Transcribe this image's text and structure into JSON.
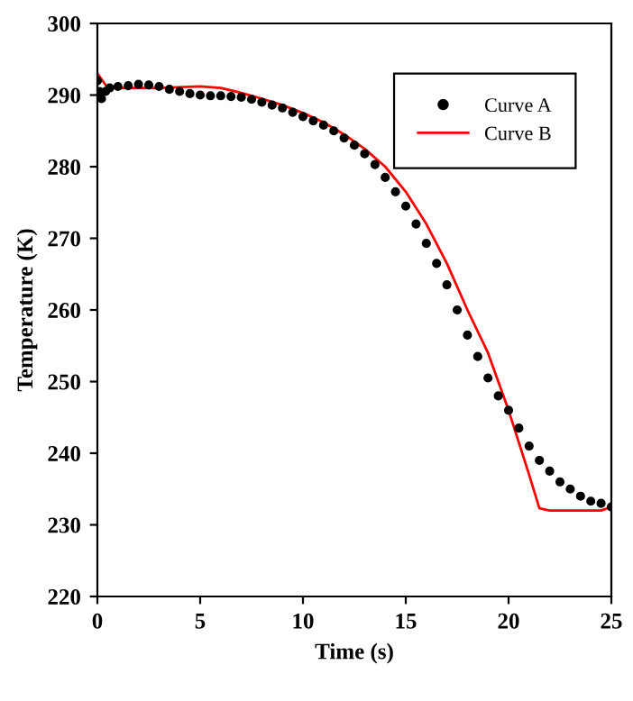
{
  "chart_data": {
    "type": "line",
    "xlabel": "Time (s)",
    "ylabel": "Temperature (K)",
    "xlim": [
      0,
      25
    ],
    "ylim": [
      220,
      300
    ],
    "xticks": [
      0,
      5,
      10,
      15,
      20,
      25
    ],
    "yticks": [
      220,
      230,
      240,
      250,
      260,
      270,
      280,
      290,
      300
    ],
    "grid": false,
    "legend": "top right",
    "series": [
      {
        "name": "Curve A",
        "type": "scatter",
        "color": "#000000",
        "marker": "circle",
        "x": [
          0,
          0.1,
          0.2,
          0.4,
          0.6,
          1,
          1.5,
          2,
          2.5,
          3,
          3.5,
          4,
          4.5,
          5,
          5.5,
          6,
          6.5,
          7,
          7.5,
          8,
          8.5,
          9,
          9.5,
          10,
          10.5,
          11,
          11.5,
          12,
          12.5,
          13,
          13.5,
          14,
          14.5,
          15,
          15.5,
          16,
          16.5,
          17,
          17.5,
          18,
          18.5,
          19,
          19.5,
          20,
          20.5,
          21,
          21.5,
          22,
          22.5,
          23,
          23.5,
          24,
          24.5,
          25
        ],
        "values": [
          292,
          290.5,
          289.5,
          290.5,
          291,
          291.2,
          291.3,
          291.5,
          291.4,
          291.2,
          290.8,
          290.5,
          290.2,
          290,
          289.9,
          289.9,
          289.8,
          289.7,
          289.4,
          289,
          288.6,
          288.2,
          287.6,
          287,
          286.4,
          285.8,
          285,
          284,
          283,
          281.8,
          280.3,
          278.5,
          276.5,
          274.5,
          272,
          269.3,
          266.5,
          263.5,
          260,
          256.5,
          253.5,
          250.5,
          248,
          246,
          243.5,
          241,
          239,
          237.5,
          236,
          235,
          234,
          233.3,
          233,
          232.5
        ]
      },
      {
        "name": "Curve B",
        "color": "#ff0000",
        "marker": "none",
        "line_style": "solid",
        "x": [
          0,
          0.5,
          1,
          3,
          5,
          6,
          7,
          8,
          9,
          10,
          11,
          12,
          13,
          14,
          15,
          16,
          17,
          18,
          19,
          20,
          21,
          21.5,
          22,
          24.5,
          25
        ],
        "values": [
          293,
          291,
          291,
          291,
          291.2,
          291,
          290.3,
          289.5,
          288.6,
          287.5,
          286.2,
          284.5,
          282.5,
          280,
          276.5,
          272,
          266.5,
          260,
          254,
          246,
          237,
          232.3,
          232,
          232,
          232.5
        ]
      }
    ]
  }
}
